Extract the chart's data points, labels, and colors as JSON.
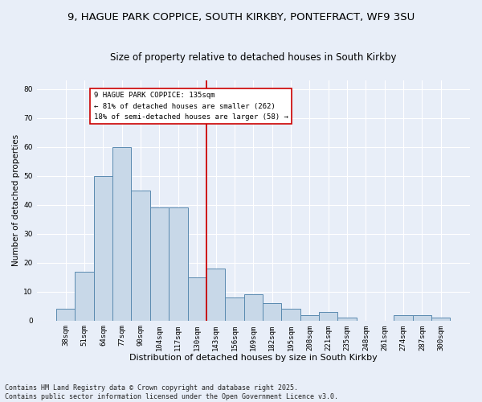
{
  "title": "9, HAGUE PARK COPPICE, SOUTH KIRKBY, PONTEFRACT, WF9 3SU",
  "subtitle": "Size of property relative to detached houses in South Kirkby",
  "xlabel": "Distribution of detached houses by size in South Kirkby",
  "ylabel": "Number of detached properties",
  "footer": "Contains HM Land Registry data © Crown copyright and database right 2025.\nContains public sector information licensed under the Open Government Licence v3.0.",
  "categories": [
    "38sqm",
    "51sqm",
    "64sqm",
    "77sqm",
    "90sqm",
    "104sqm",
    "117sqm",
    "130sqm",
    "143sqm",
    "156sqm",
    "169sqm",
    "182sqm",
    "195sqm",
    "208sqm",
    "221sqm",
    "235sqm",
    "248sqm",
    "261sqm",
    "274sqm",
    "287sqm",
    "300sqm"
  ],
  "values": [
    4,
    17,
    50,
    60,
    45,
    39,
    39,
    15,
    18,
    8,
    9,
    6,
    4,
    2,
    3,
    1,
    0,
    0,
    2,
    2,
    1
  ],
  "bar_color": "#c8d8e8",
  "bar_edge_color": "#5a8ab0",
  "background_color": "#e8eef8",
  "grid_color": "#ffffff",
  "ylim": [
    0,
    83
  ],
  "yticks": [
    0,
    10,
    20,
    30,
    40,
    50,
    60,
    70,
    80
  ],
  "vline_x": 7.5,
  "vline_color": "#cc0000",
  "annotation_text_line1": "9 HAGUE PARK COPPICE: 135sqm",
  "annotation_text_line2": "← 81% of detached houses are smaller (262)",
  "annotation_text_line3": "18% of semi-detached houses are larger (58) →",
  "annotation_fontsize": 6.5,
  "title_fontsize": 9.5,
  "subtitle_fontsize": 8.5,
  "xlabel_fontsize": 8,
  "ylabel_fontsize": 7.5,
  "tick_fontsize": 6.5,
  "footer_fontsize": 6
}
